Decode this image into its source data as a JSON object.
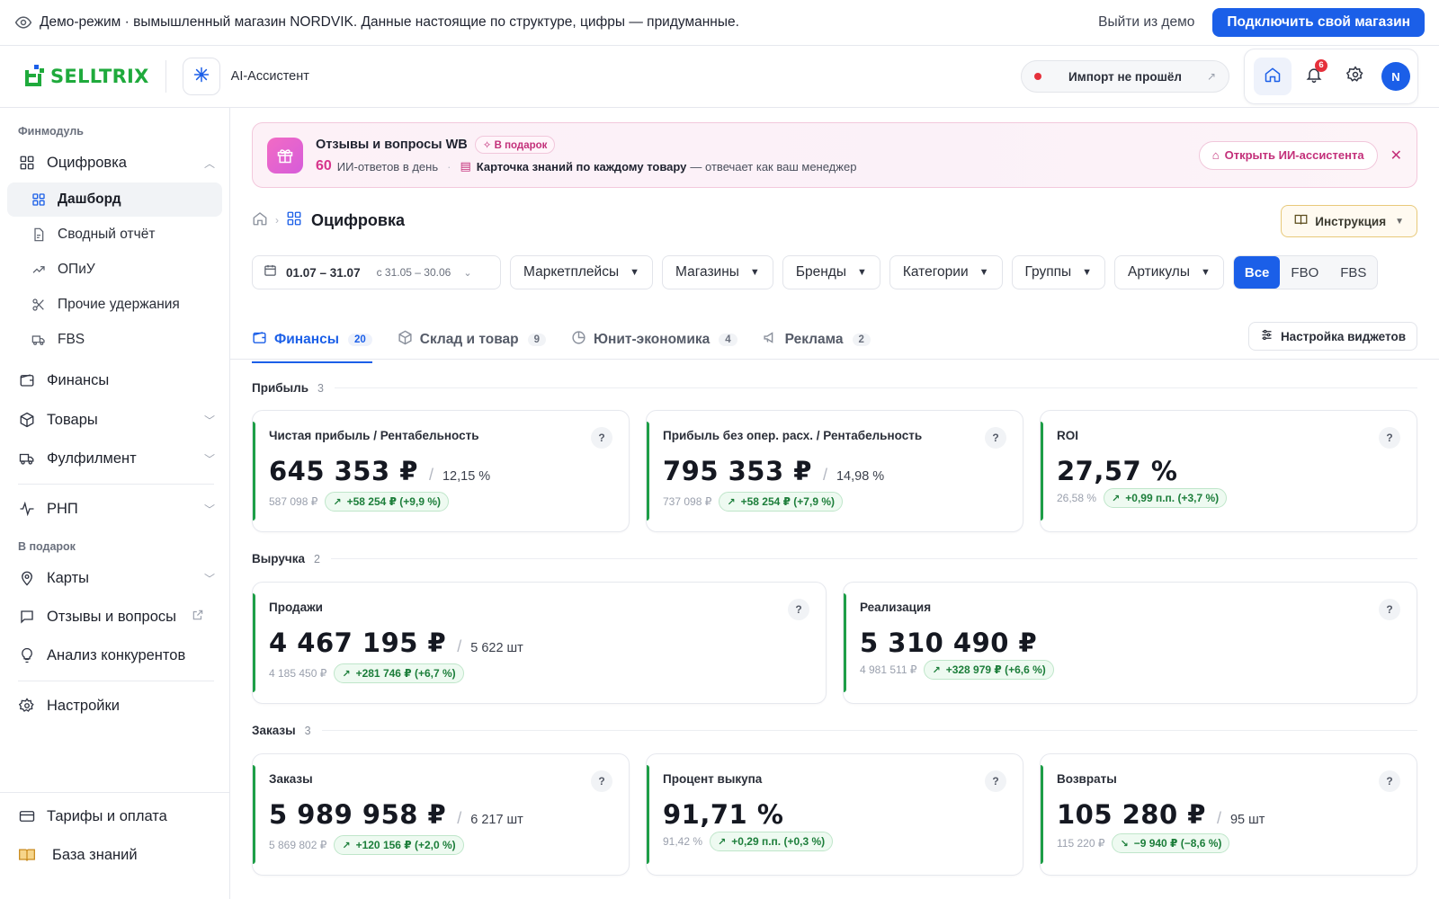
{
  "demo": {
    "text": "Демо-режим · вымышленный магазин NORDVIK. Данные настоящие по структуре, цифры — придуманные.",
    "exit": "Выйти из демо",
    "connect": "Подключить свой магазин"
  },
  "header": {
    "logo": "SELLTRIX",
    "ai_label": "AI-Ассистент",
    "import_status": "Импорт не прошёл",
    "notif_count": "6",
    "avatar": "N"
  },
  "sidebar": {
    "section1": "Финмодуль",
    "ocifrovka": "Оцифровка",
    "sub": [
      "Дашборд",
      "Сводный отчёт",
      "ОПиУ",
      "Прочие удержания",
      "FBS"
    ],
    "finance": "Финансы",
    "goods": "Товары",
    "fulfillment": "Фулфилмент",
    "rnp": "РНП",
    "section2": "В подарок",
    "maps": "Карты",
    "reviews": "Отзывы и вопросы",
    "competitors": "Анализ конкурентов",
    "settings": "Настройки",
    "tariffs": "Тарифы и оплата",
    "knowledge": "База знаний"
  },
  "promo": {
    "title": "Отзывы и вопросы WB",
    "tag": "В подарок",
    "count": "60",
    "count_label": "ИИ-ответов в день",
    "card_bold": "Карточка знаний по каждому товару",
    "card_rest": "— отвечает как ваш менеджер",
    "open": "Открыть ИИ-ассистента"
  },
  "page": {
    "title": "Оцифровка",
    "instruction": "Инструкция"
  },
  "filters": {
    "date_range": "01.07 – 31.07",
    "compare": "с 31.05 – 30.06",
    "marketplaces": "Маркетплейсы",
    "shops": "Магазины",
    "brands": "Бренды",
    "categories": "Категории",
    "groups": "Группы",
    "articles": "Артикулы",
    "seg": [
      "Все",
      "FBO",
      "FBS"
    ]
  },
  "tabs": [
    {
      "label": "Финансы",
      "count": "20"
    },
    {
      "label": "Склад и товар",
      "count": "9"
    },
    {
      "label": "Юнит-экономика",
      "count": "4"
    },
    {
      "label": "Реклама",
      "count": "2"
    }
  ],
  "widget_settings": "Настройка виджетов",
  "groups": {
    "profit": {
      "name": "Прибыль",
      "count": "3"
    },
    "revenue": {
      "name": "Выручка",
      "count": "2"
    },
    "orders": {
      "name": "Заказы",
      "count": "3"
    }
  },
  "cards": {
    "net": {
      "title": "Чистая прибыль / Рентабельность",
      "value": "645 353 ₽",
      "sub": "12,15 %",
      "prev": "587 098 ₽",
      "delta": "+58 254 ₽ (+9,9 %)"
    },
    "opprofit": {
      "title": "Прибыль без опер. расх. / Рентабельность",
      "value": "795 353 ₽",
      "sub": "14,98 %",
      "prev": "737 098 ₽",
      "delta": "+58 254 ₽ (+7,9 %)"
    },
    "roi": {
      "title": "ROI",
      "value": "27,57 %",
      "prev": "26,58 %",
      "delta": "+0,99 п.п. (+3,7 %)"
    },
    "sales": {
      "title": "Продажи",
      "value": "4 467 195 ₽",
      "sub": "5 622 шт",
      "prev": "4 185 450 ₽",
      "delta": "+281 746 ₽ (+6,7 %)"
    },
    "realization": {
      "title": "Реализация",
      "value": "5 310 490 ₽",
      "prev": "4 981 511 ₽",
      "delta": "+328 979 ₽ (+6,6 %)"
    },
    "orders": {
      "title": "Заказы",
      "value": "5 989 958 ₽",
      "sub": "6 217 шт",
      "prev": "5 869 802 ₽",
      "delta": "+120 156 ₽ (+2,0 %)"
    },
    "buyout": {
      "title": "Процент выкупа",
      "value": "91,71 %",
      "prev": "91,42 %",
      "delta": "+0,29 п.п. (+0,3 %)"
    },
    "returns": {
      "title": "Возвраты",
      "value": "105 280 ₽",
      "sub": "95 шт",
      "prev": "115 220 ₽",
      "delta": "−9 940 ₽ (−8,6 %)"
    }
  },
  "colors": {
    "accent": "#1b5fe8",
    "positive": "#1e9e47",
    "pink": "#d7358c"
  }
}
